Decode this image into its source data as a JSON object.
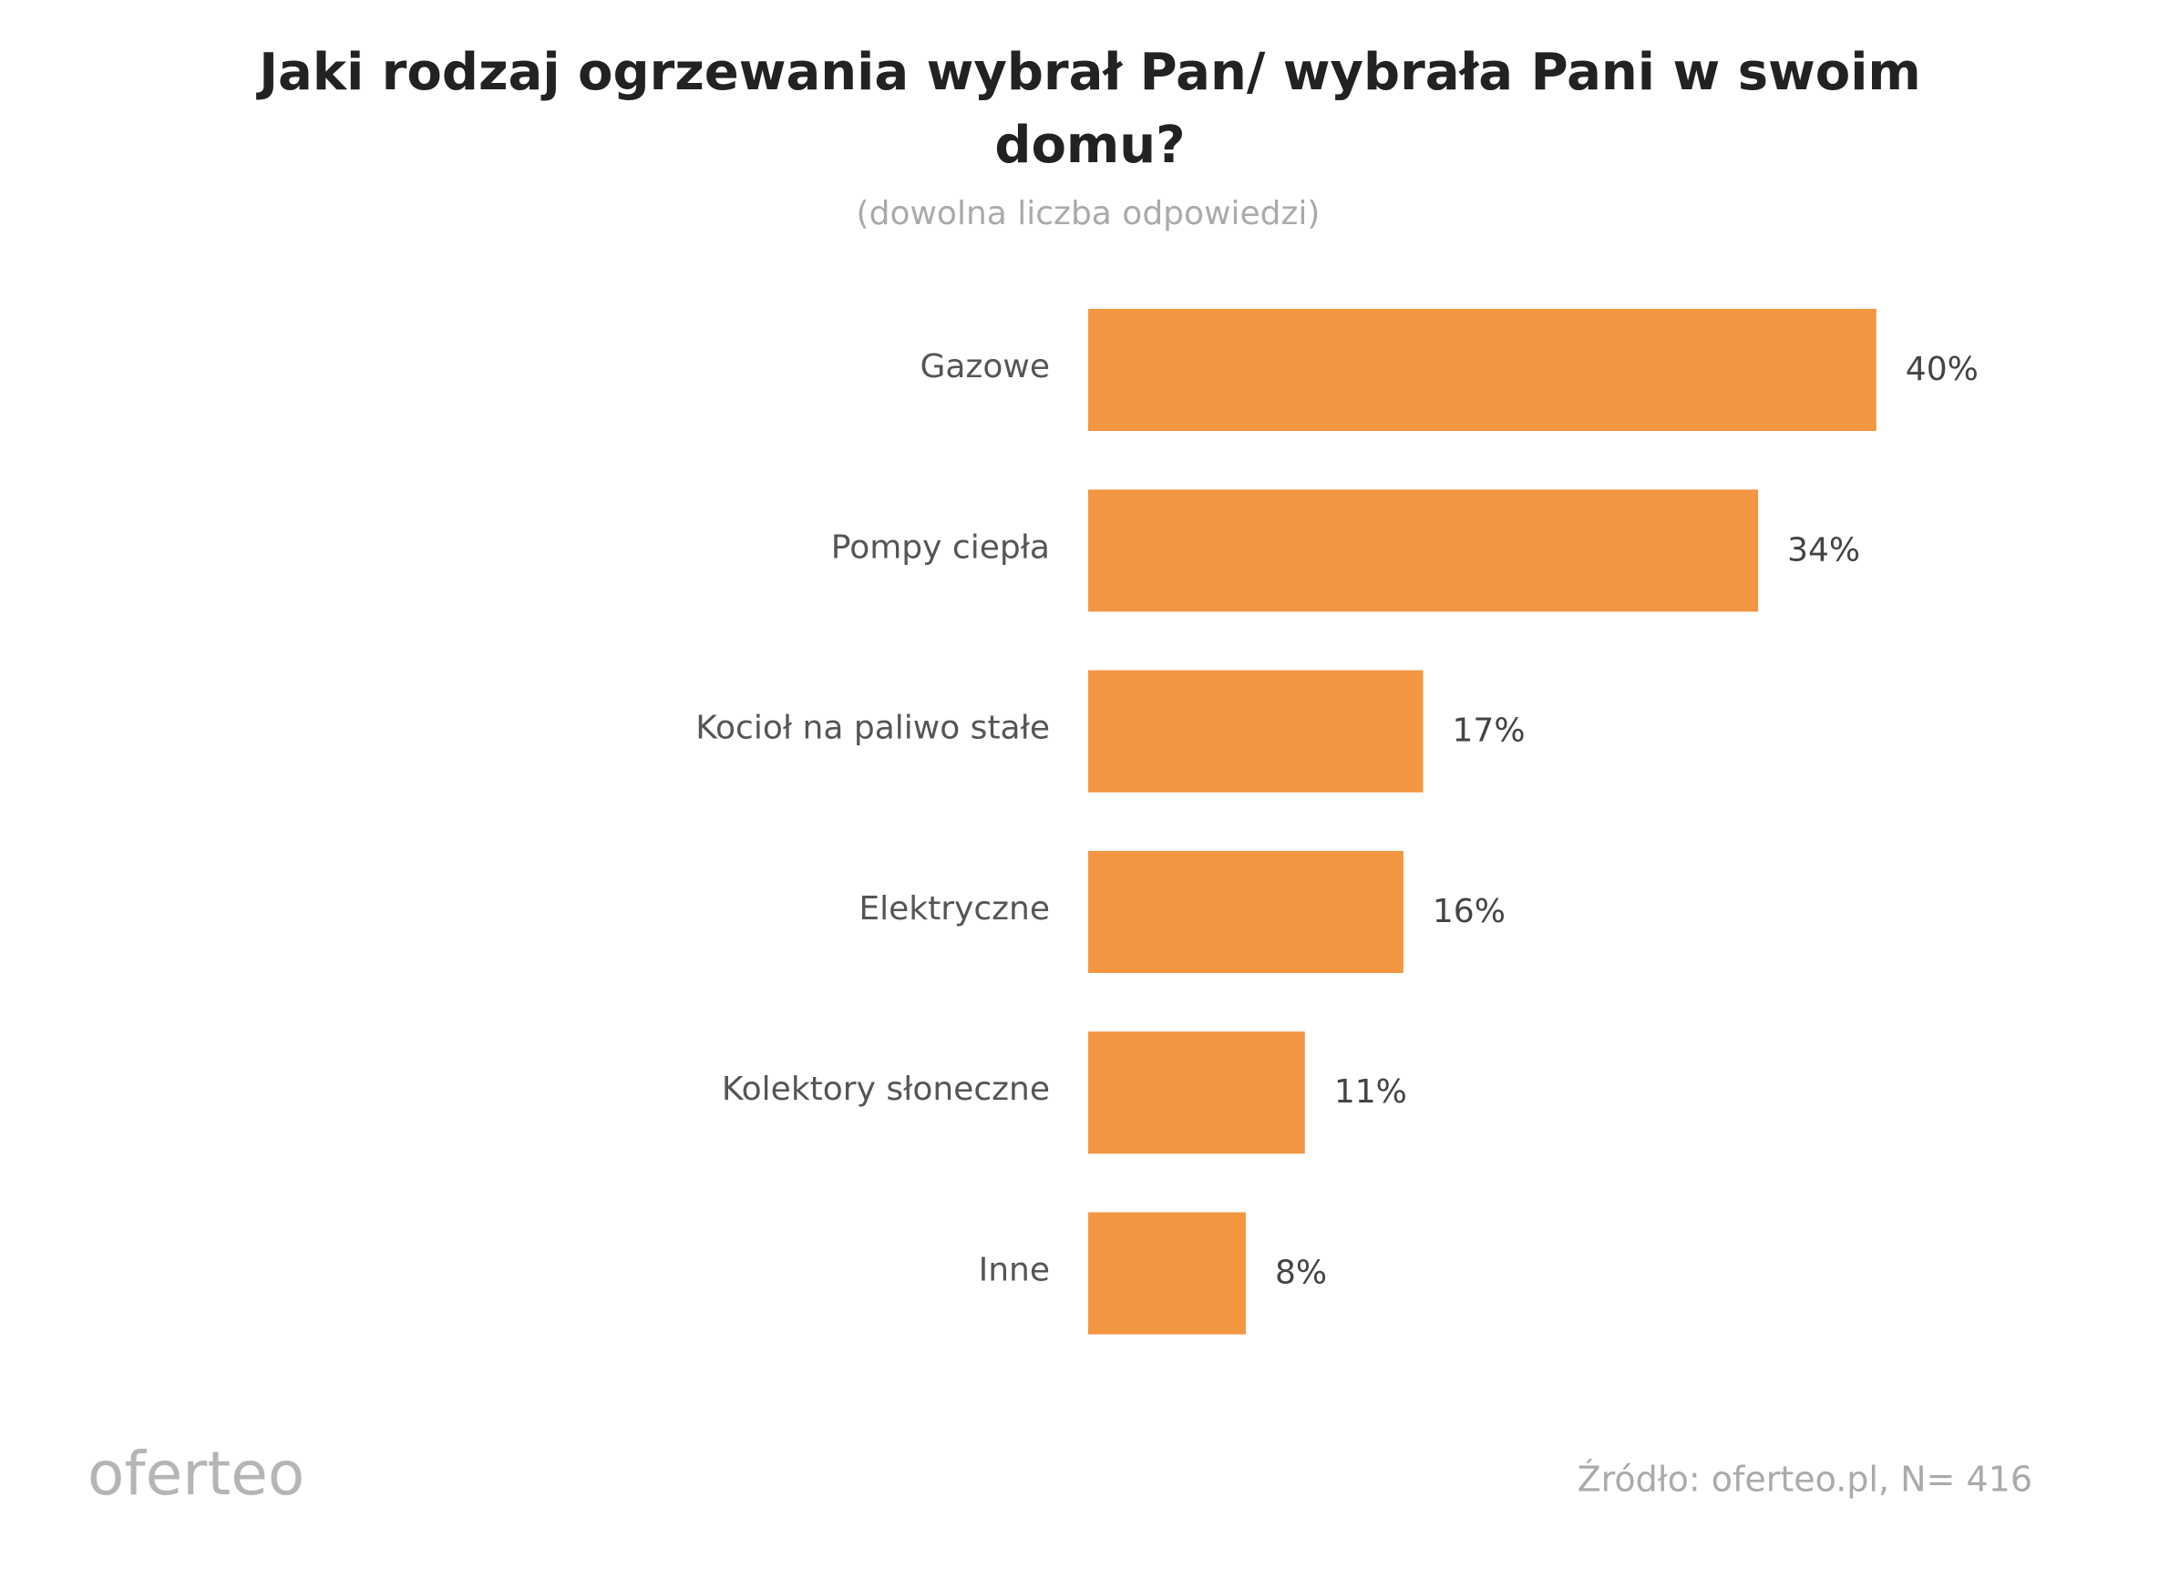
{
  "chart_data": {
    "type": "bar",
    "title": "Jaki rodzaj ogrzewania wybrał Pan/ wybrała Pani w swoim domu?",
    "subtitle": "(dowolna liczba odpowiedzi)",
    "categories": [
      "Gazowe",
      "Pompy ciepła",
      "Kocioł na paliwo stałe",
      "Elektryczne",
      "Kolektory słoneczne",
      "Inne"
    ],
    "values": [
      40,
      34,
      17,
      16,
      11,
      8
    ],
    "value_labels": [
      "40%",
      "34%",
      "17%",
      "16%",
      "11%",
      "8%"
    ],
    "color": "#f39642",
    "source": "Źródło: oferteo.pl, N= 416",
    "logo": "oferteo"
  }
}
